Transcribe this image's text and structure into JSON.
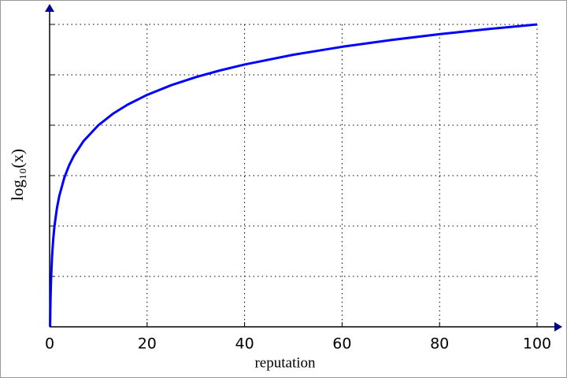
{
  "chart_data": {
    "type": "line",
    "xlabel": "reputation",
    "ylabel": "log₁₀(x)",
    "x": [
      0.1,
      0.15,
      0.2,
      0.3,
      0.5,
      0.75,
      1,
      1.5,
      2,
      3,
      4,
      5,
      7,
      10,
      13,
      16,
      20,
      25,
      30,
      35,
      40,
      50,
      60,
      70,
      80,
      90,
      100
    ],
    "values": [
      -1,
      -0.824,
      -0.699,
      -0.523,
      -0.301,
      -0.125,
      0,
      0.176,
      0.301,
      0.477,
      0.602,
      0.699,
      0.845,
      1,
      1.114,
      1.204,
      1.301,
      1.398,
      1.477,
      1.544,
      1.602,
      1.699,
      1.778,
      1.845,
      1.903,
      1.954,
      2
    ],
    "color": "#0000ff",
    "xlim": [
      0,
      100
    ],
    "xticks": [
      0,
      20,
      40,
      60,
      80,
      100
    ],
    "ylim": [
      -1,
      2
    ],
    "yticks": [
      -1,
      -0.5,
      0,
      0.5,
      1,
      1.5,
      2
    ],
    "ytick_labels": false,
    "grid": true
  }
}
